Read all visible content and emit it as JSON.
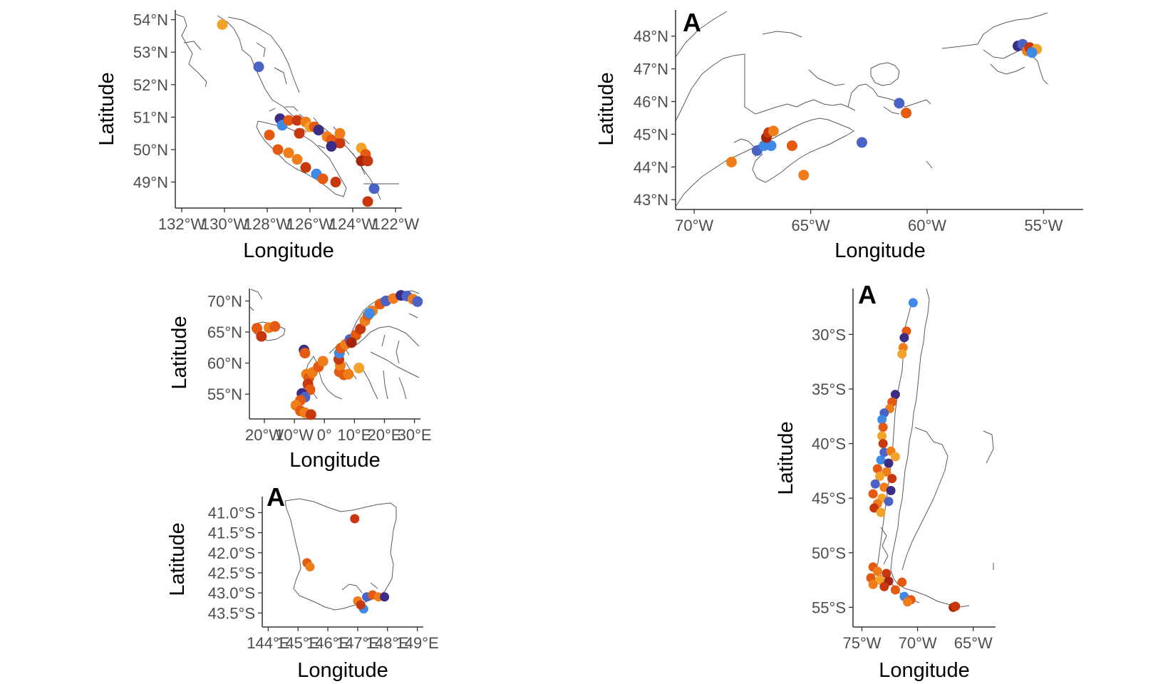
{
  "palette": [
    "#3d2c86",
    "#4a63c4",
    "#3f8ae6",
    "#f3a22a",
    "#ef7d1a",
    "#e35a10",
    "#c8380f",
    "#a5260c"
  ],
  "chart_data": [
    {
      "id": "bc",
      "type": "scatter-map",
      "region": "British Columbia coast",
      "xlabel": "Longitude",
      "ylabel": "Latitude",
      "tag": "",
      "xlim": [
        -132.3,
        -121.7
      ],
      "ylim": [
        48.2,
        54.3
      ],
      "xticks": [
        {
          "v": -132,
          "label": "132°W"
        },
        {
          "v": -130,
          "label": "130°W"
        },
        {
          "v": -128,
          "label": "128°W"
        },
        {
          "v": -126,
          "label": "126°W"
        },
        {
          "v": -124,
          "label": "124°W"
        },
        {
          "v": -122,
          "label": "122°W"
        }
      ],
      "yticks": [
        {
          "v": 54,
          "label": "54°N"
        },
        {
          "v": 53,
          "label": "53°N"
        },
        {
          "v": 52,
          "label": "52°N"
        },
        {
          "v": 51,
          "label": "51°N"
        },
        {
          "v": 50,
          "label": "50°N"
        },
        {
          "v": 49,
          "label": "49°N"
        }
      ],
      "points": [
        {
          "x": -130.1,
          "y": 53.85,
          "c": 3
        },
        {
          "x": -128.4,
          "y": 52.55,
          "c": 1
        },
        {
          "x": -127.4,
          "y": 50.95,
          "c": 0
        },
        {
          "x": -127.3,
          "y": 50.75,
          "c": 2
        },
        {
          "x": -127.0,
          "y": 50.9,
          "c": 5
        },
        {
          "x": -126.6,
          "y": 50.9,
          "c": 6
        },
        {
          "x": -126.2,
          "y": 50.85,
          "c": 4
        },
        {
          "x": -126.0,
          "y": 50.7,
          "c": 3
        },
        {
          "x": -125.8,
          "y": 50.7,
          "c": 5
        },
        {
          "x": -126.5,
          "y": 50.5,
          "c": 6
        },
        {
          "x": -125.6,
          "y": 50.6,
          "c": 0
        },
        {
          "x": -125.2,
          "y": 50.4,
          "c": 4
        },
        {
          "x": -125.0,
          "y": 50.3,
          "c": 5
        },
        {
          "x": -124.6,
          "y": 50.2,
          "c": 6
        },
        {
          "x": -127.9,
          "y": 50.45,
          "c": 5
        },
        {
          "x": -127.5,
          "y": 50.0,
          "c": 5
        },
        {
          "x": -127.0,
          "y": 49.9,
          "c": 4
        },
        {
          "x": -126.6,
          "y": 49.7,
          "c": 4
        },
        {
          "x": -126.2,
          "y": 49.45,
          "c": 6
        },
        {
          "x": -125.7,
          "y": 49.25,
          "c": 2
        },
        {
          "x": -125.4,
          "y": 49.1,
          "c": 5
        },
        {
          "x": -124.8,
          "y": 49.0,
          "c": 6
        },
        {
          "x": -125.0,
          "y": 50.1,
          "c": 0
        },
        {
          "x": -124.6,
          "y": 50.5,
          "c": 4
        },
        {
          "x": -123.6,
          "y": 50.05,
          "c": 3
        },
        {
          "x": -123.4,
          "y": 49.85,
          "c": 5
        },
        {
          "x": -123.6,
          "y": 49.65,
          "c": 7
        },
        {
          "x": -123.3,
          "y": 49.65,
          "c": 6
        },
        {
          "x": -123.0,
          "y": 48.8,
          "c": 1
        },
        {
          "x": -123.3,
          "y": 48.4,
          "c": 6
        }
      ]
    },
    {
      "id": "atlantic",
      "type": "scatter-map",
      "region": "Atlantic Canada",
      "xlabel": "Longitude",
      "ylabel": "Latitude",
      "tag": "A",
      "xlim": [
        -70.8,
        -53.3
      ],
      "ylim": [
        42.7,
        48.8
      ],
      "xticks": [
        {
          "v": -70,
          "label": "70°W"
        },
        {
          "v": -65,
          "label": "65°W"
        },
        {
          "v": -60,
          "label": "60°W"
        },
        {
          "v": -55,
          "label": "55°W"
        }
      ],
      "yticks": [
        {
          "v": 48,
          "label": "48°N"
        },
        {
          "v": 47,
          "label": "47°N"
        },
        {
          "v": 46,
          "label": "46°N"
        },
        {
          "v": 45,
          "label": "45°N"
        },
        {
          "v": 44,
          "label": "44°N"
        },
        {
          "v": 43,
          "label": "43°N"
        }
      ],
      "points": [
        {
          "x": -68.4,
          "y": 44.15,
          "c": 4
        },
        {
          "x": -67.3,
          "y": 44.5,
          "c": 1
        },
        {
          "x": -67.0,
          "y": 44.65,
          "c": 2
        },
        {
          "x": -66.7,
          "y": 44.65,
          "c": 2
        },
        {
          "x": -66.9,
          "y": 44.9,
          "c": 7
        },
        {
          "x": -66.8,
          "y": 45.05,
          "c": 6
        },
        {
          "x": -66.6,
          "y": 45.1,
          "c": 4
        },
        {
          "x": -65.8,
          "y": 44.65,
          "c": 5
        },
        {
          "x": -65.3,
          "y": 43.75,
          "c": 4
        },
        {
          "x": -62.8,
          "y": 44.75,
          "c": 1
        },
        {
          "x": -61.2,
          "y": 45.95,
          "c": 1
        },
        {
          "x": -60.9,
          "y": 45.65,
          "c": 5
        },
        {
          "x": -56.1,
          "y": 47.7,
          "c": 0
        },
        {
          "x": -55.9,
          "y": 47.75,
          "c": 1
        },
        {
          "x": -55.7,
          "y": 47.55,
          "c": 4
        },
        {
          "x": -55.6,
          "y": 47.65,
          "c": 6
        },
        {
          "x": -55.3,
          "y": 47.6,
          "c": 3
        },
        {
          "x": -55.5,
          "y": 47.5,
          "c": 2
        }
      ]
    },
    {
      "id": "europe",
      "type": "scatter-map",
      "region": "Northern Europe",
      "xlabel": "Longitude",
      "ylabel": "Latitude",
      "tag": "",
      "xlim": [
        -25,
        32
      ],
      "ylim": [
        51,
        72
      ],
      "xticks": [
        {
          "v": -20,
          "label": "20°W"
        },
        {
          "v": -10,
          "label": "10°W"
        },
        {
          "v": 0,
          "label": "0°"
        },
        {
          "v": 10,
          "label": "10°E"
        },
        {
          "v": 20,
          "label": "20°E"
        },
        {
          "v": 30,
          "label": "30°E"
        }
      ],
      "yticks": [
        {
          "v": 70,
          "label": "70°N"
        },
        {
          "v": 65,
          "label": "65°N"
        },
        {
          "v": 60,
          "label": "60°N"
        },
        {
          "v": 55,
          "label": "55°N"
        }
      ],
      "points": [
        {
          "x": -22.5,
          "y": 65.6,
          "c": 5
        },
        {
          "x": -21.0,
          "y": 64.3,
          "c": 6
        },
        {
          "x": -18.5,
          "y": 65.7,
          "c": 4
        },
        {
          "x": -16.5,
          "y": 65.9,
          "c": 5
        },
        {
          "x": -6.8,
          "y": 62.1,
          "c": 0
        },
        {
          "x": -6.5,
          "y": 61.6,
          "c": 5
        },
        {
          "x": -6.0,
          "y": 58.2,
          "c": 4
        },
        {
          "x": -5.2,
          "y": 57.6,
          "c": 5
        },
        {
          "x": -4.0,
          "y": 58.5,
          "c": 4
        },
        {
          "x": -2.0,
          "y": 59.4,
          "c": 5
        },
        {
          "x": -0.5,
          "y": 60.3,
          "c": 4
        },
        {
          "x": -5.5,
          "y": 56.6,
          "c": 6
        },
        {
          "x": -4.8,
          "y": 55.7,
          "c": 5
        },
        {
          "x": -7.5,
          "y": 55.1,
          "c": 0
        },
        {
          "x": -6.5,
          "y": 54.5,
          "c": 1
        },
        {
          "x": -8.0,
          "y": 54.0,
          "c": 5
        },
        {
          "x": -9.5,
          "y": 53.2,
          "c": 4
        },
        {
          "x": -8.0,
          "y": 52.3,
          "c": 5
        },
        {
          "x": -6.5,
          "y": 52.0,
          "c": 4
        },
        {
          "x": -4.5,
          "y": 51.7,
          "c": 6
        },
        {
          "x": 5.0,
          "y": 58.6,
          "c": 5
        },
        {
          "x": 5.3,
          "y": 59.6,
          "c": 4
        },
        {
          "x": 4.8,
          "y": 60.6,
          "c": 6
        },
        {
          "x": 5.0,
          "y": 61.6,
          "c": 2
        },
        {
          "x": 5.5,
          "y": 62.4,
          "c": 5
        },
        {
          "x": 7.0,
          "y": 63.0,
          "c": 4
        },
        {
          "x": 8.5,
          "y": 63.8,
          "c": 1
        },
        {
          "x": 10.5,
          "y": 64.5,
          "c": 5
        },
        {
          "x": 12.0,
          "y": 65.5,
          "c": 6
        },
        {
          "x": 13.5,
          "y": 66.8,
          "c": 4
        },
        {
          "x": 14.5,
          "y": 67.7,
          "c": 5
        },
        {
          "x": 16.0,
          "y": 68.4,
          "c": 4
        },
        {
          "x": 18.5,
          "y": 69.5,
          "c": 5
        },
        {
          "x": 20.5,
          "y": 70.0,
          "c": 1
        },
        {
          "x": 23.0,
          "y": 70.4,
          "c": 4
        },
        {
          "x": 25.5,
          "y": 70.9,
          "c": 0
        },
        {
          "x": 27.5,
          "y": 70.8,
          "c": 1
        },
        {
          "x": 29.5,
          "y": 70.3,
          "c": 4
        },
        {
          "x": 31.0,
          "y": 69.9,
          "c": 1
        },
        {
          "x": 6.5,
          "y": 58.1,
          "c": 5
        },
        {
          "x": 8.0,
          "y": 58.2,
          "c": 4
        },
        {
          "x": 11.5,
          "y": 59.2,
          "c": 3
        },
        {
          "x": 9.0,
          "y": 63.3,
          "c": 7
        },
        {
          "x": 15.0,
          "y": 68.0,
          "c": 2
        }
      ]
    },
    {
      "id": "tasmania",
      "type": "scatter-map",
      "region": "Tasmania",
      "xlabel": "Longitude",
      "ylabel": "Latitude",
      "tag": "A",
      "xlim": [
        143.8,
        149.2
      ],
      "ylim": [
        -43.85,
        -40.6
      ],
      "xticks": [
        {
          "v": 144,
          "label": "144°E"
        },
        {
          "v": 145,
          "label": "145°E"
        },
        {
          "v": 146,
          "label": "146°E"
        },
        {
          "v": 147,
          "label": "147°E"
        },
        {
          "v": 148,
          "label": "148°E"
        },
        {
          "v": 149,
          "label": "149°E"
        }
      ],
      "yticks": [
        {
          "v": -41.0,
          "label": "41.0°S"
        },
        {
          "v": -41.5,
          "label": "41.5°S"
        },
        {
          "v": -42.0,
          "label": "42.0°S"
        },
        {
          "v": -42.5,
          "label": "42.5°S"
        },
        {
          "v": -43.0,
          "label": "43.0°S"
        },
        {
          "v": -43.5,
          "label": "43.5°S"
        }
      ],
      "points": [
        {
          "x": 146.9,
          "y": -41.15,
          "c": 6
        },
        {
          "x": 145.3,
          "y": -42.25,
          "c": 5
        },
        {
          "x": 145.4,
          "y": -42.35,
          "c": 4
        },
        {
          "x": 147.0,
          "y": -43.2,
          "c": 4
        },
        {
          "x": 147.3,
          "y": -43.1,
          "c": 1
        },
        {
          "x": 147.5,
          "y": -43.05,
          "c": 5
        },
        {
          "x": 147.7,
          "y": -43.1,
          "c": 4
        },
        {
          "x": 147.2,
          "y": -43.4,
          "c": 2
        },
        {
          "x": 147.9,
          "y": -43.1,
          "c": 0
        },
        {
          "x": 147.1,
          "y": -43.3,
          "c": 6
        }
      ]
    },
    {
      "id": "chile",
      "type": "scatter-map",
      "region": "Chile",
      "xlabel": "Longitude",
      "ylabel": "Latitude",
      "tag": "A",
      "xlim": [
        -75.8,
        -63.0
      ],
      "ylim": [
        -56.8,
        -25.8
      ],
      "xticks": [
        {
          "v": -75,
          "label": "75°W"
        },
        {
          "v": -70,
          "label": "70°W"
        },
        {
          "v": -65,
          "label": "65°W"
        }
      ],
      "yticks": [
        {
          "v": -30,
          "label": "30°S"
        },
        {
          "v": -35,
          "label": "35°S"
        },
        {
          "v": -40,
          "label": "40°S"
        },
        {
          "v": -45,
          "label": "45°S"
        },
        {
          "v": -50,
          "label": "50°S"
        },
        {
          "v": -55,
          "label": "55°S"
        }
      ],
      "points": [
        {
          "x": -70.4,
          "y": -27.1,
          "c": 2
        },
        {
          "x": -71.0,
          "y": -29.7,
          "c": 5
        },
        {
          "x": -71.2,
          "y": -30.3,
          "c": 0
        },
        {
          "x": -71.3,
          "y": -31.2,
          "c": 4
        },
        {
          "x": -71.4,
          "y": -31.8,
          "c": 3
        },
        {
          "x": -72.0,
          "y": -35.5,
          "c": 0
        },
        {
          "x": -72.3,
          "y": -36.2,
          "c": 5
        },
        {
          "x": -72.5,
          "y": -36.8,
          "c": 4
        },
        {
          "x": -73.0,
          "y": -37.2,
          "c": 1
        },
        {
          "x": -73.2,
          "y": -37.8,
          "c": 2
        },
        {
          "x": -73.1,
          "y": -38.5,
          "c": 5
        },
        {
          "x": -73.2,
          "y": -39.3,
          "c": 3
        },
        {
          "x": -73.1,
          "y": -40.0,
          "c": 6
        },
        {
          "x": -73.0,
          "y": -40.8,
          "c": 1
        },
        {
          "x": -72.4,
          "y": -40.7,
          "c": 4
        },
        {
          "x": -72.0,
          "y": -41.2,
          "c": 3
        },
        {
          "x": -73.3,
          "y": -41.5,
          "c": 2
        },
        {
          "x": -72.6,
          "y": -41.8,
          "c": 0
        },
        {
          "x": -73.6,
          "y": -42.3,
          "c": 5
        },
        {
          "x": -72.8,
          "y": -42.6,
          "c": 4
        },
        {
          "x": -73.4,
          "y": -43.0,
          "c": 3
        },
        {
          "x": -72.3,
          "y": -43.2,
          "c": 6
        },
        {
          "x": -73.8,
          "y": -43.7,
          "c": 1
        },
        {
          "x": -73.0,
          "y": -44.0,
          "c": 4
        },
        {
          "x": -72.4,
          "y": -44.3,
          "c": 0
        },
        {
          "x": -74.0,
          "y": -44.6,
          "c": 5
        },
        {
          "x": -73.2,
          "y": -45.0,
          "c": 3
        },
        {
          "x": -72.6,
          "y": -45.3,
          "c": 1
        },
        {
          "x": -73.6,
          "y": -45.5,
          "c": 4
        },
        {
          "x": -73.9,
          "y": -45.9,
          "c": 6
        },
        {
          "x": -73.3,
          "y": -46.3,
          "c": 3
        },
        {
          "x": -74.0,
          "y": -51.3,
          "c": 5
        },
        {
          "x": -73.6,
          "y": -51.7,
          "c": 4
        },
        {
          "x": -72.8,
          "y": -51.9,
          "c": 6
        },
        {
          "x": -74.2,
          "y": -52.3,
          "c": 5
        },
        {
          "x": -73.4,
          "y": -52.5,
          "c": 3
        },
        {
          "x": -72.6,
          "y": -52.6,
          "c": 7
        },
        {
          "x": -71.4,
          "y": -52.7,
          "c": 5
        },
        {
          "x": -74.0,
          "y": -52.9,
          "c": 4
        },
        {
          "x": -73.0,
          "y": -53.1,
          "c": 6
        },
        {
          "x": -72.0,
          "y": -53.4,
          "c": 5
        },
        {
          "x": -71.2,
          "y": -54.0,
          "c": 2
        },
        {
          "x": -70.6,
          "y": -54.3,
          "c": 5
        },
        {
          "x": -70.9,
          "y": -54.5,
          "c": 4
        },
        {
          "x": -66.8,
          "y": -55.0,
          "c": 7
        },
        {
          "x": -66.6,
          "y": -54.9,
          "c": 6
        }
      ]
    }
  ]
}
